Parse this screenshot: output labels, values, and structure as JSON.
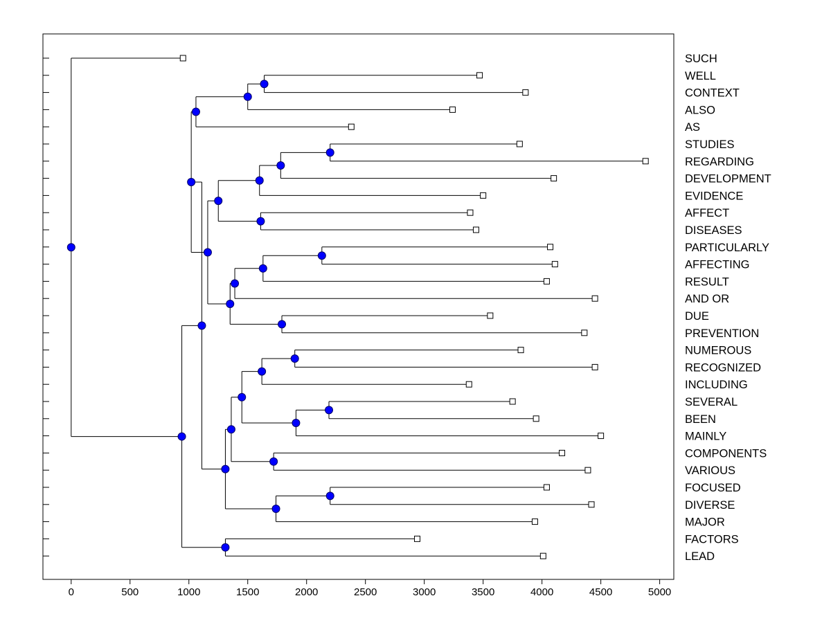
{
  "chart_data": {
    "type": "dendrogram",
    "title": "",
    "xlabel": "",
    "ylabel": "",
    "xlim": [
      -240,
      5120
    ],
    "xticks": [
      0,
      500,
      1000,
      1500,
      2000,
      2500,
      3000,
      3500,
      4000,
      4500,
      5000
    ],
    "xtick_labels": [
      "0",
      "500",
      "1000",
      "1500",
      "2000",
      "2500",
      "3000",
      "3500",
      "4000",
      "4500",
      "5000"
    ],
    "grid": false,
    "leaves": [
      {
        "label": "SUCH",
        "value": 950
      },
      {
        "label": "WELL",
        "value": 3470
      },
      {
        "label": "CONTEXT",
        "value": 3860
      },
      {
        "label": "ALSO",
        "value": 3240
      },
      {
        "label": "AS",
        "value": 2380
      },
      {
        "label": "STUDIES",
        "value": 3810
      },
      {
        "label": "REGARDING",
        "value": 4880
      },
      {
        "label": "DEVELOPMENT",
        "value": 4100
      },
      {
        "label": "EVIDENCE",
        "value": 3500
      },
      {
        "label": "AFFECT",
        "value": 3390
      },
      {
        "label": "DISEASES",
        "value": 3440
      },
      {
        "label": "PARTICULARLY",
        "value": 4070
      },
      {
        "label": "AFFECTING",
        "value": 4110
      },
      {
        "label": "RESULT",
        "value": 4040
      },
      {
        "label": "AND OR",
        "value": 4450
      },
      {
        "label": "DUE",
        "value": 3560
      },
      {
        "label": "PREVENTION",
        "value": 4360
      },
      {
        "label": "NUMEROUS",
        "value": 3820
      },
      {
        "label": "RECOGNIZED",
        "value": 4450
      },
      {
        "label": "INCLUDING",
        "value": 3380
      },
      {
        "label": "SEVERAL",
        "value": 3750
      },
      {
        "label": "BEEN",
        "value": 3950
      },
      {
        "label": "MAINLY",
        "value": 4500
      },
      {
        "label": "COMPONENTS",
        "value": 4170
      },
      {
        "label": "VARIOUS",
        "value": 4390
      },
      {
        "label": "FOCUSED",
        "value": 4040
      },
      {
        "label": "DIVERSE",
        "value": 4420
      },
      {
        "label": "MAJOR",
        "value": 3940
      },
      {
        "label": "FACTORS",
        "value": 2940
      },
      {
        "label": "LEAD",
        "value": 4010
      }
    ],
    "merges": [
      {
        "id": "m_well_context",
        "height": 1640,
        "children": [
          "WELL",
          "CONTEXT"
        ]
      },
      {
        "id": "m_wc_also",
        "height": 1500,
        "children": [
          "m_well_context",
          "ALSO"
        ]
      },
      {
        "id": "m_wca_as",
        "height": 1060,
        "children": [
          "m_wc_also",
          "AS"
        ]
      },
      {
        "id": "m_studies_regarding",
        "height": 2200,
        "children": [
          "STUDIES",
          "REGARDING"
        ]
      },
      {
        "id": "m_sr_development",
        "height": 1780,
        "children": [
          "m_studies_regarding",
          "DEVELOPMENT"
        ]
      },
      {
        "id": "m_srd_evidence",
        "height": 1600,
        "children": [
          "m_sr_development",
          "EVIDENCE"
        ]
      },
      {
        "id": "m_affect_diseases",
        "height": 1610,
        "children": [
          "AFFECT",
          "DISEASES"
        ]
      },
      {
        "id": "m_evidence_affect",
        "height": 1250,
        "children": [
          "m_srd_evidence",
          "m_affect_diseases"
        ]
      },
      {
        "id": "m_particularly_affecting",
        "height": 2130,
        "children": [
          "PARTICULARLY",
          "AFFECTING"
        ]
      },
      {
        "id": "m_pa_result",
        "height": 1630,
        "children": [
          "m_particularly_affecting",
          "RESULT"
        ]
      },
      {
        "id": "m_par_andor",
        "height": 1390,
        "children": [
          "m_pa_result",
          "AND OR"
        ]
      },
      {
        "id": "m_due_prevention",
        "height": 1790,
        "children": [
          "DUE",
          "PREVENTION"
        ]
      },
      {
        "id": "m_pa_due",
        "height": 1350,
        "children": [
          "m_par_andor",
          "m_due_prevention"
        ]
      },
      {
        "id": "m_evidence_pa",
        "height": 1160,
        "children": [
          "m_evidence_affect",
          "m_pa_due"
        ]
      },
      {
        "id": "m_upper",
        "height": 1020,
        "children": [
          "m_wca_as",
          "m_evidence_pa"
        ]
      },
      {
        "id": "m_numerous_recognized",
        "height": 1900,
        "children": [
          "NUMEROUS",
          "RECOGNIZED"
        ]
      },
      {
        "id": "m_nr_including",
        "height": 1620,
        "children": [
          "m_numerous_recognized",
          "INCLUDING"
        ]
      },
      {
        "id": "m_several_been",
        "height": 2190,
        "children": [
          "SEVERAL",
          "BEEN"
        ]
      },
      {
        "id": "m_sb_mainly",
        "height": 1910,
        "children": [
          "m_several_been",
          "MAINLY"
        ]
      },
      {
        "id": "m_nri_sbm",
        "height": 1450,
        "children": [
          "m_nr_including",
          "m_sb_mainly"
        ]
      },
      {
        "id": "m_components_various",
        "height": 1720,
        "children": [
          "COMPONENTS",
          "VARIOUS"
        ]
      },
      {
        "id": "m_nri_cv",
        "height": 1360,
        "children": [
          "m_nri_sbm",
          "m_components_various"
        ]
      },
      {
        "id": "m_focused_diverse",
        "height": 2200,
        "children": [
          "FOCUSED",
          "DIVERSE"
        ]
      },
      {
        "id": "m_fd_major",
        "height": 1740,
        "children": [
          "m_focused_diverse",
          "MAJOR"
        ]
      },
      {
        "id": "m_lower_mid",
        "height": 1310,
        "children": [
          "m_nri_cv",
          "m_fd_major"
        ]
      },
      {
        "id": "m_mid",
        "height": 1110,
        "children": [
          "m_upper",
          "m_lower_mid"
        ]
      },
      {
        "id": "m_factors_lead",
        "height": 1310,
        "children": [
          "FACTORS",
          "LEAD"
        ]
      },
      {
        "id": "m_mid_fl",
        "height": 940,
        "children": [
          "m_mid",
          "m_factors_lead"
        ]
      },
      {
        "id": "m_root",
        "height": 0,
        "children": [
          "SUCH",
          "m_mid_fl"
        ]
      }
    ],
    "colors": {
      "background": "#ffffff",
      "axis": "#000000",
      "line": "#000000",
      "node_fill": "#0000ff",
      "node_stroke": "#000066",
      "leaf_fill": "#ffffff"
    }
  }
}
